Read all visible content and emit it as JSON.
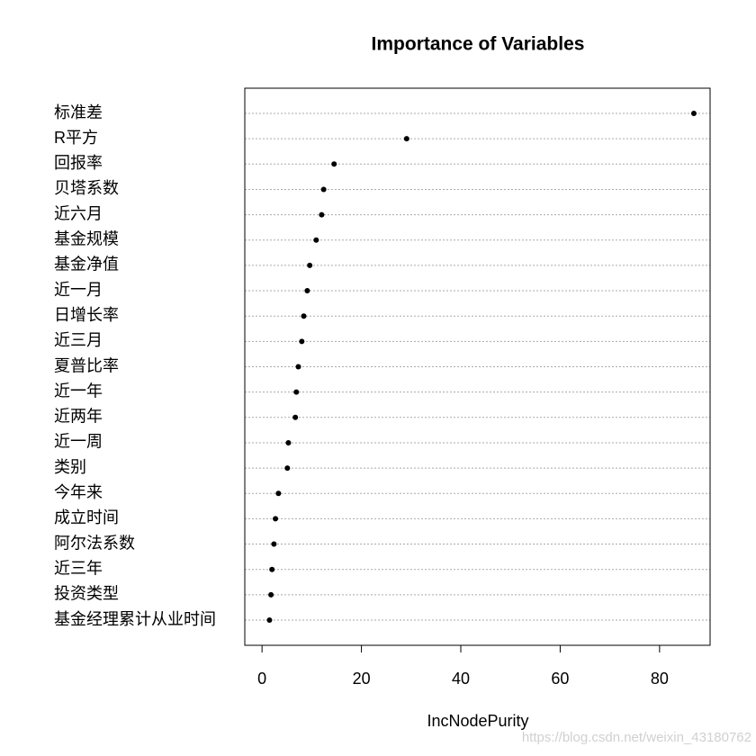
{
  "chart_data": {
    "type": "dotchart",
    "title": "Importance of Variables",
    "x_label": "IncNodePurity",
    "categories": [
      "标准差",
      "R平方",
      "回报率",
      "贝塔系数",
      "近六月",
      "基金规模",
      "基金净值",
      "近一月",
      "日增长率",
      "近三月",
      "夏普比率",
      "近一年",
      "近两年",
      "近一周",
      "类别",
      "今年来",
      "成立时间",
      "阿尔法系数",
      "近三年",
      "投资类型",
      "基金经理累计从业时间"
    ],
    "values": [
      86.9,
      29.1,
      14.5,
      12.4,
      12.0,
      10.9,
      9.6,
      9.1,
      8.4,
      8.0,
      7.3,
      6.9,
      6.7,
      5.3,
      5.1,
      3.3,
      2.7,
      2.4,
      2.0,
      1.8,
      1.5
    ],
    "color": "#000000",
    "xlim": [
      -3.47,
      90.17
    ],
    "xticks": [
      0,
      20,
      40,
      60,
      80
    ],
    "grid": true
  },
  "watermark": "https://blog.csdn.net/weixin_43180762"
}
